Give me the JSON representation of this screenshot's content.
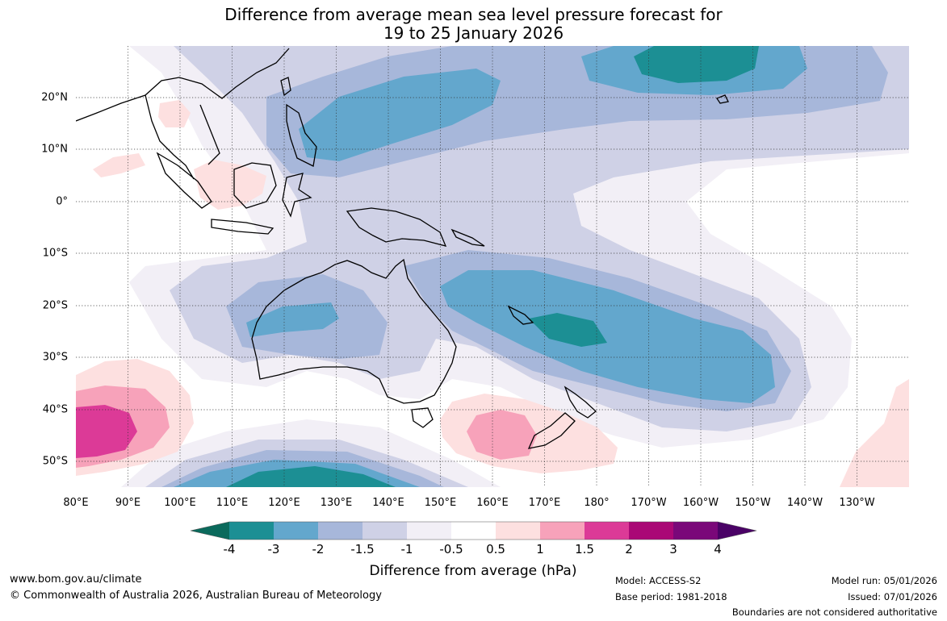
{
  "title": {
    "line1": "Difference from average mean sea level pressure forecast for",
    "line2": "19 to 25 January 2026"
  },
  "map": {
    "lat_ticks": [
      "20°N",
      "10°N",
      "0°",
      "10°S",
      "20°S",
      "30°S",
      "40°S",
      "50°S"
    ],
    "lon_ticks": [
      "80°E",
      "90°E",
      "100°E",
      "110°E",
      "120°E",
      "130°E",
      "140°E",
      "150°E",
      "160°E",
      "170°E",
      "180°",
      "170°W",
      "160°W",
      "150°W",
      "140°W",
      "130°W"
    ]
  },
  "colorbar": {
    "labels": [
      "-4",
      "-3",
      "-2",
      "-1.5",
      "-1",
      "-0.5",
      "0.5",
      "1",
      "1.5",
      "2",
      "3",
      "4"
    ],
    "colors": [
      "#0b6a5c",
      "#1c8f94",
      "#63a7cd",
      "#a7b7da",
      "#cfd1e6",
      "#f2eff6",
      "#ffffff",
      "#fde0e0",
      "#f7a2ba",
      "#dc3a97",
      "#aa0876",
      "#7a0879",
      "#4a0266"
    ],
    "axis_label": "Difference from average (hPa)"
  },
  "footer": {
    "url": "www.bom.gov.au/climate",
    "copyright": "© Commonwealth of Australia 2026, Australian Bureau of Meteorology",
    "model": "Model: ACCESS-S2",
    "base_period": "Base period: 1981-2018",
    "model_run": "Model run: 05/01/2026",
    "issued": "Issued: 07/01/2026",
    "disclaimer": "Boundaries are not considered authoritative"
  }
}
